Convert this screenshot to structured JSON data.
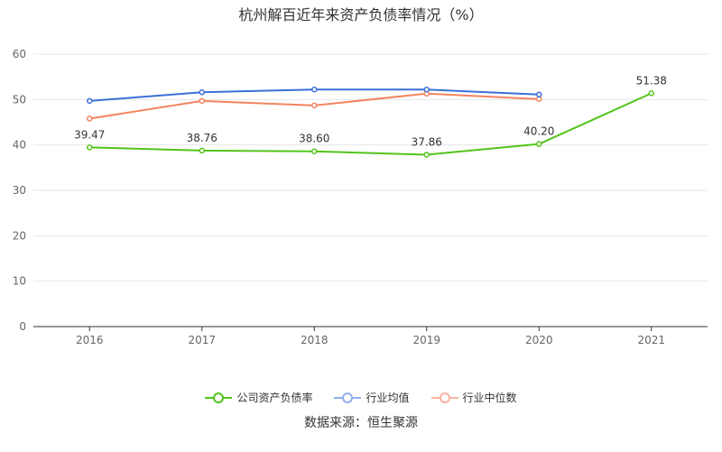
{
  "title": "杭州解百近年来资产负债率情况（%）",
  "source": "数据来源：恒生聚源",
  "colors": {
    "company": "#52c41a",
    "industry_avg": "#3a6fd8",
    "industry_median": "#f4845f",
    "grid": "#e6e6e6",
    "axis": "#333333"
  },
  "chart_data": {
    "type": "line",
    "title": "杭州解百近年来资产负债率情况（%）",
    "xlabel": "",
    "ylabel": "",
    "categories": [
      "2016",
      "2017",
      "2018",
      "2019",
      "2020",
      "2021"
    ],
    "ylim": [
      0,
      60
    ],
    "yticks": [
      0,
      10,
      20,
      30,
      40,
      50,
      60
    ],
    "grid": true,
    "legend_position": "bottom",
    "series": [
      {
        "name": "公司资产负债率",
        "color_key": "company",
        "values": [
          39.47,
          38.76,
          38.6,
          37.86,
          40.2,
          51.38
        ],
        "data_labels": [
          "39.47",
          "38.76",
          "38.60",
          "37.86",
          "40.20",
          "51.38"
        ]
      },
      {
        "name": "行业均值",
        "color_key": "industry_avg",
        "values": [
          49.7,
          51.6,
          52.2,
          52.2,
          51.1,
          null
        ]
      },
      {
        "name": "行业中位数",
        "color_key": "industry_median",
        "values": [
          45.8,
          49.7,
          48.7,
          51.3,
          50.1,
          null
        ]
      }
    ]
  }
}
